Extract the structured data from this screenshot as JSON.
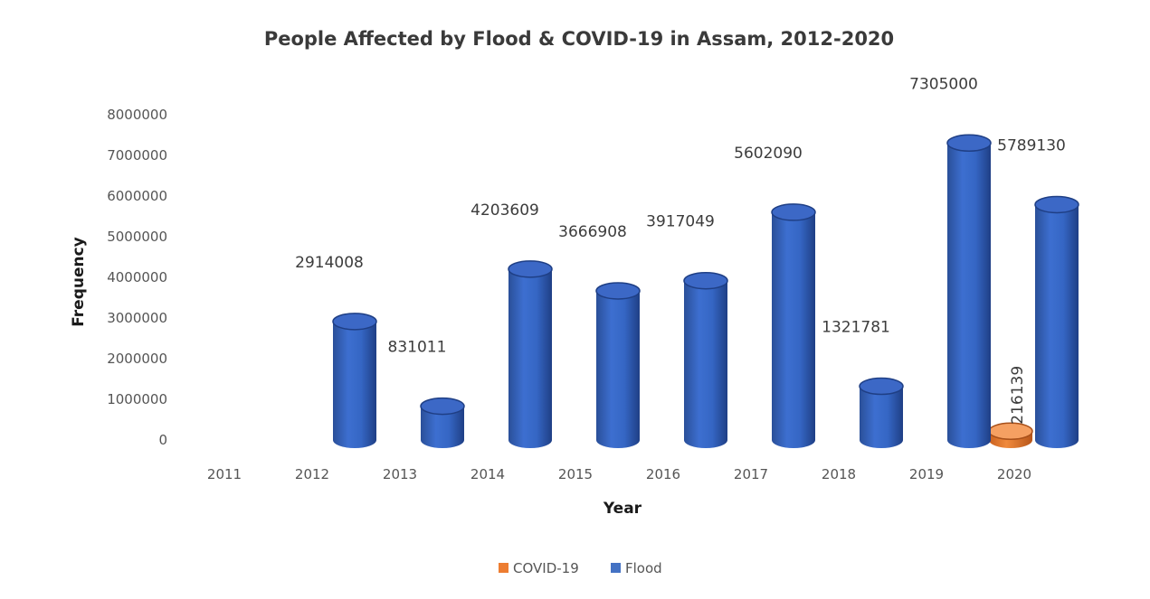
{
  "chart_data": {
    "type": "bar",
    "title": "People Affected by Flood & COVID-19 in Assam, 2012-2020",
    "xlabel": "Year",
    "ylabel": "Frequency",
    "categories": [
      "2011",
      "2012",
      "2013",
      "2014",
      "2015",
      "2016",
      "2017",
      "2018",
      "2019",
      "2020"
    ],
    "ylim": [
      0,
      8000000
    ],
    "yticks": [
      "0",
      "1000000",
      "2000000",
      "3000000",
      "4000000",
      "5000000",
      "6000000",
      "7000000",
      "8000000"
    ],
    "series": [
      {
        "name": "COVID-19",
        "color": "#ED7D31",
        "values": [
          null,
          null,
          null,
          null,
          null,
          null,
          null,
          null,
          null,
          216139
        ],
        "labels": [
          "",
          "",
          "",
          "",
          "",
          "",
          "",
          "",
          "",
          "216139"
        ]
      },
      {
        "name": "Flood",
        "color": "#4472C4",
        "values": [
          null,
          2914008,
          831011,
          4203609,
          3666908,
          3917049,
          5602090,
          1321781,
          7305000,
          5789130
        ],
        "labels": [
          "",
          "2914008",
          "831011",
          "4203609",
          "3666908",
          "3917049",
          "5602090",
          "1321781",
          "7305000",
          "5789130"
        ]
      }
    ],
    "legend": {
      "position": "bottom"
    },
    "grid": false
  }
}
